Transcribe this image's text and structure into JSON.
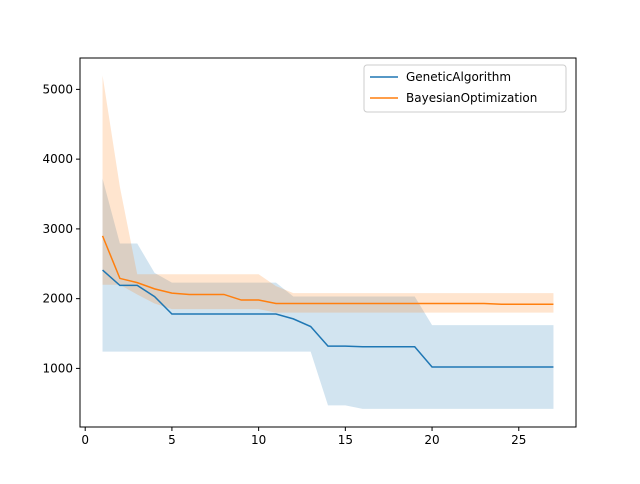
{
  "chart_data": {
    "type": "line",
    "title": "",
    "xlabel": "",
    "ylabel": "",
    "xlim": [
      -0.3,
      28.3
    ],
    "ylim": [
      160,
      5450
    ],
    "xticks": [
      0,
      5,
      10,
      15,
      20,
      25
    ],
    "yticks": [
      1000,
      2000,
      3000,
      4000,
      5000
    ],
    "grid": false,
    "legend_position": "top-right",
    "x": [
      1,
      2,
      3,
      4,
      5,
      6,
      7,
      8,
      9,
      10,
      11,
      12,
      13,
      14,
      15,
      16,
      17,
      18,
      19,
      20,
      21,
      22,
      23,
      24,
      25,
      26,
      27
    ],
    "series": [
      {
        "name": "GeneticAlgorithm",
        "color": "#1f77b4",
        "band_color": "#1f77b4",
        "values": [
          2410,
          2190,
          2190,
          2030,
          1780,
          1780,
          1780,
          1780,
          1780,
          1780,
          1780,
          1710,
          1600,
          1320,
          1320,
          1310,
          1310,
          1310,
          1310,
          1020,
          1020,
          1020,
          1020,
          1020,
          1020,
          1020,
          1020
        ],
        "lower": [
          1240,
          1240,
          1240,
          1240,
          1240,
          1240,
          1240,
          1240,
          1240,
          1240,
          1240,
          1240,
          1240,
          470,
          470,
          420,
          420,
          420,
          420,
          420,
          420,
          420,
          420,
          420,
          420,
          420,
          420
        ],
        "upper": [
          3720,
          2790,
          2790,
          2370,
          2230,
          2230,
          2230,
          2230,
          2230,
          2230,
          2230,
          2030,
          2030,
          2030,
          2030,
          2030,
          2030,
          2030,
          2030,
          1620,
          1620,
          1620,
          1620,
          1620,
          1620,
          1620,
          1620
        ]
      },
      {
        "name": "BayesianOptimization",
        "color": "#ff7f0e",
        "band_color": "#ff7f0e",
        "values": [
          2900,
          2290,
          2230,
          2140,
          2080,
          2060,
          2060,
          2060,
          1980,
          1980,
          1930,
          1930,
          1930,
          1930,
          1930,
          1930,
          1930,
          1930,
          1930,
          1930,
          1930,
          1930,
          1930,
          1920,
          1920,
          1920,
          1920
        ],
        "lower": [
          2200,
          2200,
          2060,
          1930,
          1850,
          1850,
          1850,
          1850,
          1850,
          1850,
          1800,
          1800,
          1800,
          1800,
          1800,
          1800,
          1800,
          1800,
          1800,
          1800,
          1800,
          1800,
          1800,
          1800,
          1800,
          1800,
          1800
        ],
        "upper": [
          5200,
          3600,
          2350,
          2350,
          2350,
          2350,
          2350,
          2350,
          2350,
          2350,
          2180,
          2080,
          2080,
          2080,
          2080,
          2080,
          2080,
          2080,
          2080,
          2080,
          2080,
          2080,
          2080,
          2080,
          2080,
          2080,
          2080
        ]
      }
    ]
  }
}
